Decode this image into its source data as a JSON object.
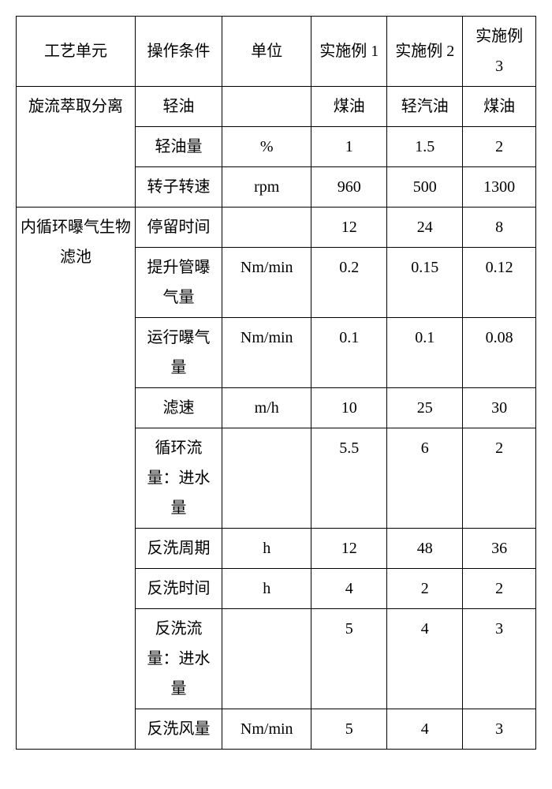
{
  "header": {
    "c1": "工艺单元",
    "c2": "操作条件",
    "c3": "单位",
    "c4": "实施例 1",
    "c5": "实施例 2",
    "c6": "实施例\n3"
  },
  "section1": {
    "name": "旋流萃取分离",
    "rows": [
      {
        "cond": "轻油",
        "unit": "",
        "v1": "煤油",
        "v2": "轻汽油",
        "v3": "煤油"
      },
      {
        "cond": "轻油量",
        "unit": "%",
        "v1": "1",
        "v2": "1.5",
        "v3": "2"
      },
      {
        "cond": "转子转速",
        "unit": "rpm",
        "v1": "960",
        "v2": "500",
        "v3": "1300"
      }
    ]
  },
  "section2": {
    "name": "内循环曝气生物\n滤池",
    "rows": [
      {
        "cond": "停留时间",
        "unit": "",
        "v1": "12",
        "v2": "24",
        "v3": "8"
      },
      {
        "cond": "提升管曝\n气量",
        "unit": "Nm/min",
        "v1": "0.2",
        "v2": "0.15",
        "v3": "0.12"
      },
      {
        "cond": "运行曝气\n量",
        "unit": "Nm/min",
        "v1": "0.1",
        "v2": "0.1",
        "v3": "0.08"
      },
      {
        "cond": "滤速",
        "unit": "m/h",
        "v1": "10",
        "v2": "25",
        "v3": "30"
      },
      {
        "cond": "循环流\n量：进水\n量",
        "unit": "",
        "v1": "5.5",
        "v2": "6",
        "v3": "2"
      },
      {
        "cond": "反洗周期",
        "unit": "h",
        "v1": "12",
        "v2": "48",
        "v3": "36"
      },
      {
        "cond": "反洗时间",
        "unit": "h",
        "v1": "4",
        "v2": "2",
        "v3": "2"
      },
      {
        "cond": "反洗流\n量：进水\n量",
        "unit": "",
        "v1": "5",
        "v2": "4",
        "v3": "3"
      },
      {
        "cond": "反洗风量",
        "unit": "Nm/min",
        "v1": "5",
        "v2": "4",
        "v3": "3"
      }
    ]
  }
}
